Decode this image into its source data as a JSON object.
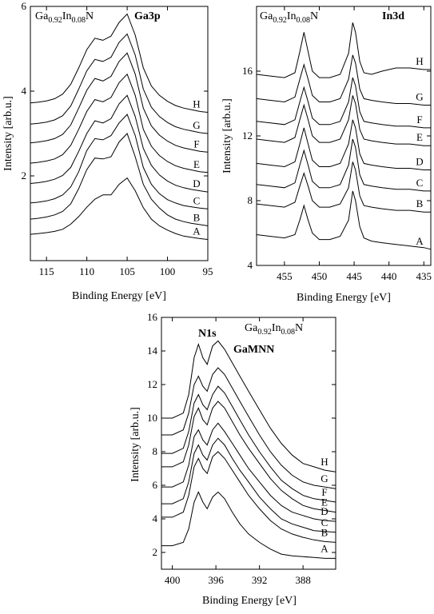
{
  "colors": {
    "line": "#000000",
    "background": "#ffffff"
  },
  "chart_data": [
    {
      "type": "line",
      "id": "ga3p",
      "core_level_label": "Ga3p",
      "compound_label": {
        "el1": "Ga",
        "x1": "0.92",
        "el2": "In",
        "x2": "0.08",
        "el3": "N"
      },
      "xlabel": "Binding Energy [eV]",
      "ylabel": "Intensity [arb.u.]",
      "xlim": [
        117,
        95
      ],
      "ylim": [
        0,
        6
      ],
      "xticks": [
        115,
        110,
        105,
        100,
        95
      ],
      "yticks": [
        2,
        4,
        6
      ],
      "grid": false,
      "x": [
        117,
        116,
        115,
        114,
        113,
        112,
        111,
        110,
        109,
        108,
        107,
        106,
        105,
        104,
        103,
        102,
        101,
        100,
        99,
        98,
        97,
        96,
        95
      ],
      "series": [
        {
          "name": "A",
          "values": [
            0.62,
            0.64,
            0.66,
            0.69,
            0.74,
            0.86,
            1.04,
            1.26,
            1.45,
            1.55,
            1.55,
            1.8,
            1.95,
            1.65,
            1.25,
            0.98,
            0.82,
            0.72,
            0.64,
            0.58,
            0.55,
            0.52,
            0.5
          ]
        },
        {
          "name": "B",
          "values": [
            0.98,
            1.0,
            1.03,
            1.08,
            1.16,
            1.34,
            1.7,
            2.15,
            2.42,
            2.4,
            2.45,
            2.8,
            3.0,
            2.45,
            1.8,
            1.45,
            1.24,
            1.08,
            0.98,
            0.92,
            0.88,
            0.85,
            0.82
          ]
        },
        {
          "name": "C",
          "values": [
            1.36,
            1.38,
            1.41,
            1.46,
            1.55,
            1.74,
            2.1,
            2.6,
            2.88,
            2.85,
            2.95,
            3.25,
            3.45,
            2.95,
            2.2,
            1.8,
            1.58,
            1.44,
            1.36,
            1.3,
            1.27,
            1.24,
            1.22
          ]
        },
        {
          "name": "D",
          "values": [
            1.82,
            1.84,
            1.87,
            1.92,
            2.01,
            2.2,
            2.58,
            3.0,
            3.3,
            3.25,
            3.35,
            3.7,
            3.9,
            3.4,
            2.65,
            2.25,
            2.02,
            1.88,
            1.78,
            1.72,
            1.68,
            1.65,
            1.62
          ]
        },
        {
          "name": "E",
          "values": [
            2.3,
            2.32,
            2.35,
            2.4,
            2.5,
            2.72,
            3.1,
            3.52,
            3.8,
            3.75,
            3.85,
            4.2,
            4.4,
            3.9,
            3.1,
            2.7,
            2.48,
            2.34,
            2.24,
            2.18,
            2.14,
            2.1,
            2.08
          ]
        },
        {
          "name": "F",
          "values": [
            2.78,
            2.8,
            2.83,
            2.88,
            2.98,
            3.2,
            3.6,
            4.02,
            4.3,
            4.24,
            4.35,
            4.7,
            4.9,
            4.4,
            3.6,
            3.18,
            2.96,
            2.82,
            2.72,
            2.66,
            2.62,
            2.58,
            2.56
          ]
        },
        {
          "name": "G",
          "values": [
            3.22,
            3.24,
            3.27,
            3.32,
            3.42,
            3.65,
            4.05,
            4.48,
            4.75,
            4.7,
            4.8,
            5.15,
            5.35,
            4.85,
            4.05,
            3.62,
            3.4,
            3.26,
            3.16,
            3.1,
            3.06,
            3.02,
            3.0
          ]
        },
        {
          "name": "H",
          "values": [
            3.72,
            3.74,
            3.77,
            3.82,
            3.93,
            4.16,
            4.55,
            4.98,
            5.25,
            5.2,
            5.3,
            5.62,
            5.82,
            5.32,
            4.55,
            4.12,
            3.9,
            3.76,
            3.66,
            3.6,
            3.56,
            3.52,
            3.5
          ]
        }
      ]
    },
    {
      "type": "line",
      "id": "in3d",
      "core_level_label": "In3d",
      "compound_label": {
        "el1": "Ga",
        "x1": "0.92",
        "el2": "In",
        "x2": "0.08",
        "el3": "N"
      },
      "xlabel": "Binding Energy [eV]",
      "ylabel": "Intensity [arb.u.]",
      "xlim": [
        459,
        434
      ],
      "ylim": [
        4,
        20
      ],
      "xticks": [
        455,
        450,
        445,
        440,
        435
      ],
      "yticks": [
        4,
        8,
        12,
        16
      ],
      "grid": false,
      "x": [
        459,
        457,
        455,
        453.5,
        452.8,
        452.2,
        451.6,
        451,
        450,
        448.5,
        447,
        445.8,
        445.2,
        444.8,
        444.2,
        443.6,
        442.5,
        441,
        439,
        437,
        435,
        434
      ],
      "series": [
        {
          "name": "A",
          "values": [
            5.9,
            5.8,
            5.7,
            5.9,
            6.8,
            7.7,
            6.8,
            6.0,
            5.6,
            5.6,
            5.8,
            6.8,
            8.6,
            8.0,
            6.4,
            5.7,
            5.5,
            5.4,
            5.3,
            5.2,
            5.1,
            5.0
          ]
        },
        {
          "name": "B",
          "values": [
            7.8,
            7.7,
            7.6,
            7.9,
            8.9,
            9.7,
            8.9,
            8.0,
            7.6,
            7.6,
            7.8,
            8.8,
            10.4,
            9.9,
            8.3,
            7.7,
            7.6,
            7.5,
            7.4,
            7.4,
            7.3,
            7.3
          ]
        },
        {
          "name": "C",
          "values": [
            9.0,
            8.9,
            8.8,
            9.1,
            10.2,
            11.1,
            10.2,
            9.2,
            8.8,
            8.8,
            9.0,
            10.2,
            11.8,
            11.3,
            9.6,
            9.0,
            8.9,
            8.8,
            8.7,
            8.7,
            8.6,
            8.6
          ]
        },
        {
          "name": "D",
          "values": [
            10.3,
            10.2,
            10.1,
            10.4,
            11.5,
            12.5,
            11.5,
            10.5,
            10.1,
            10.1,
            10.3,
            11.5,
            13.0,
            12.5,
            10.9,
            10.3,
            10.2,
            10.1,
            10.0,
            10.0,
            9.9,
            9.9
          ]
        },
        {
          "name": "E",
          "values": [
            11.8,
            11.7,
            11.6,
            11.9,
            13.0,
            13.9,
            13.0,
            12.0,
            11.6,
            11.6,
            11.8,
            13.0,
            14.5,
            14.0,
            12.4,
            11.8,
            11.7,
            11.6,
            11.5,
            11.5,
            11.4,
            11.4
          ]
        },
        {
          "name": "F",
          "values": [
            12.9,
            12.8,
            12.7,
            13.0,
            14.1,
            15.0,
            14.1,
            13.1,
            12.7,
            12.7,
            12.9,
            14.1,
            15.6,
            15.1,
            13.5,
            12.9,
            12.8,
            12.7,
            12.6,
            12.6,
            12.5,
            12.5
          ]
        },
        {
          "name": "G",
          "values": [
            14.3,
            14.2,
            14.1,
            14.4,
            15.5,
            16.4,
            15.5,
            14.5,
            14.1,
            14.1,
            14.3,
            15.5,
            17.0,
            16.5,
            14.9,
            14.3,
            14.2,
            14.1,
            14.0,
            14.0,
            13.9,
            13.9
          ]
        },
        {
          "name": "H",
          "values": [
            15.8,
            15.7,
            15.6,
            15.9,
            17.2,
            18.4,
            17.2,
            16.0,
            15.6,
            15.6,
            15.8,
            17.1,
            19.0,
            18.4,
            16.6,
            15.9,
            15.8,
            16.0,
            16.2,
            16.2,
            16.1,
            16.1
          ]
        }
      ]
    },
    {
      "type": "line",
      "id": "n1s",
      "core_level_label": "N1s",
      "secondary_label": "GaMNN",
      "compound_label": {
        "el1": "Ga",
        "x1": "0.92",
        "el2": "In",
        "x2": "0.08",
        "el3": "N"
      },
      "xlabel": "Binding Energy [eV]",
      "ylabel": "Intensity [arb.u.]",
      "xlim": [
        401,
        385
      ],
      "ylim": [
        1,
        16
      ],
      "xticks": [
        400,
        396,
        392,
        388
      ],
      "yticks": [
        2,
        4,
        6,
        8,
        10,
        12,
        14,
        16
      ],
      "grid": false,
      "x": [
        401,
        400,
        399,
        398.5,
        398,
        397.6,
        397.2,
        396.8,
        396.3,
        395.8,
        395.2,
        394.5,
        393.8,
        393,
        392,
        391,
        390,
        389,
        388,
        387,
        386,
        385
      ],
      "series": [
        {
          "name": "A",
          "values": [
            2.4,
            2.4,
            2.6,
            3.4,
            5.0,
            5.6,
            5.0,
            4.6,
            5.3,
            5.6,
            5.2,
            4.4,
            3.7,
            3.1,
            2.6,
            2.2,
            1.9,
            1.8,
            1.75,
            1.7,
            1.65,
            1.65
          ]
        },
        {
          "name": "B",
          "values": [
            4.1,
            4.1,
            4.4,
            5.4,
            7.1,
            7.6,
            7.0,
            6.7,
            7.7,
            8.0,
            7.6,
            6.9,
            6.2,
            5.4,
            4.6,
            3.9,
            3.4,
            3.1,
            2.9,
            2.75,
            2.65,
            2.6
          ]
        },
        {
          "name": "C",
          "values": [
            4.9,
            4.9,
            5.2,
            6.2,
            7.9,
            8.4,
            7.8,
            7.5,
            8.4,
            8.8,
            8.4,
            7.6,
            6.9,
            6.2,
            5.3,
            4.6,
            4.0,
            3.7,
            3.5,
            3.3,
            3.25,
            3.2
          ]
        },
        {
          "name": "D",
          "values": [
            5.9,
            5.9,
            6.2,
            7.2,
            8.9,
            9.3,
            8.7,
            8.4,
            9.3,
            9.7,
            9.2,
            8.5,
            7.8,
            7.0,
            6.2,
            5.4,
            4.8,
            4.4,
            4.2,
            4.0,
            3.9,
            3.85
          ]
        },
        {
          "name": "E",
          "values": [
            7.1,
            7.1,
            7.4,
            8.4,
            10.1,
            10.6,
            9.9,
            9.6,
            10.6,
            11.0,
            10.6,
            9.8,
            9.0,
            8.2,
            7.3,
            6.4,
            5.7,
            5.2,
            4.8,
            4.6,
            4.5,
            4.4
          ]
        },
        {
          "name": "F",
          "values": [
            7.9,
            7.9,
            8.2,
            9.2,
            10.9,
            11.4,
            10.8,
            10.5,
            11.4,
            11.9,
            11.5,
            10.7,
            9.9,
            9.0,
            8.0,
            7.1,
            6.3,
            5.8,
            5.4,
            5.2,
            5.1,
            5.0
          ]
        },
        {
          "name": "G",
          "values": [
            9.0,
            9.0,
            9.3,
            10.3,
            12.0,
            12.5,
            11.9,
            11.6,
            12.6,
            13.0,
            12.6,
            11.8,
            11.0,
            10.1,
            9.0,
            8.0,
            7.2,
            6.6,
            6.2,
            6.0,
            5.9,
            5.8
          ]
        },
        {
          "name": "H",
          "values": [
            10.0,
            10.0,
            10.3,
            11.4,
            13.6,
            14.4,
            13.6,
            13.2,
            14.3,
            14.6,
            14.1,
            13.3,
            12.5,
            11.6,
            10.5,
            9.4,
            8.5,
            7.8,
            7.3,
            7.1,
            6.9,
            6.8
          ]
        }
      ]
    }
  ]
}
